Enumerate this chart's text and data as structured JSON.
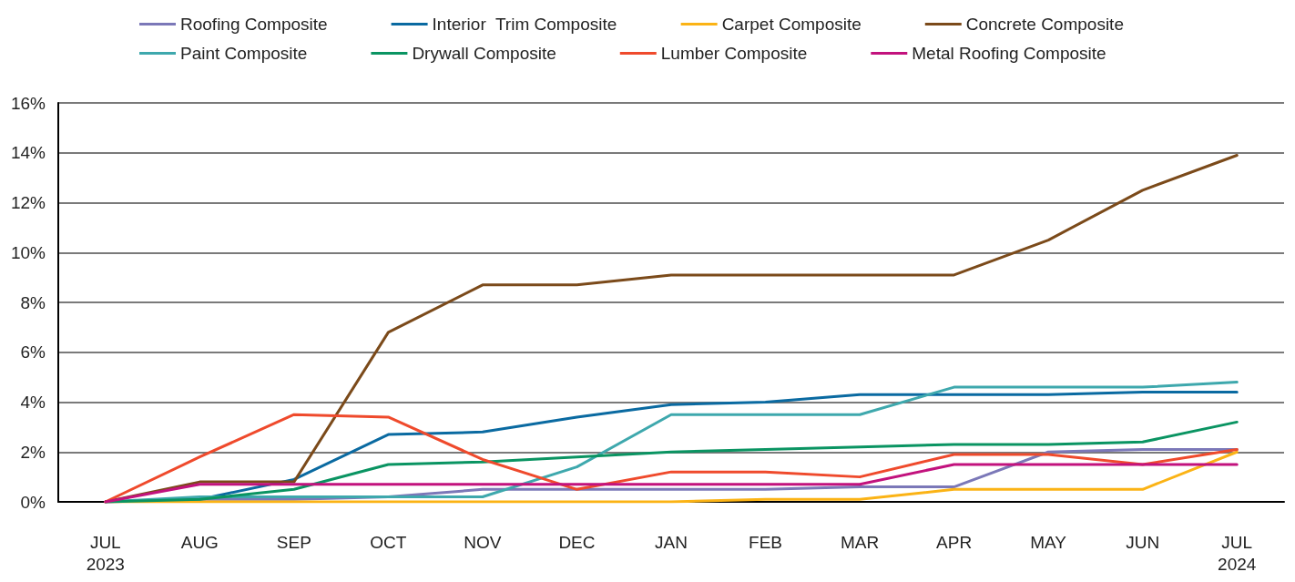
{
  "chart_data": {
    "type": "line",
    "categories": [
      "JUL\n2023",
      "AUG",
      "SEP",
      "OCT",
      "NOV",
      "DEC",
      "JAN",
      "FEB",
      "MAR",
      "APR",
      "MAY",
      "JUN",
      "JUL\n2024"
    ],
    "series": [
      {
        "name": "Roofing Composite",
        "color": "#7b78b8",
        "values": [
          0,
          0.1,
          0.1,
          0.2,
          0.5,
          0.5,
          0.5,
          0.5,
          0.6,
          0.6,
          2.0,
          2.1,
          2.1
        ]
      },
      {
        "name": "Interior  Trim Composite",
        "color": "#0a6aa1",
        "values": [
          0,
          0.1,
          0.9,
          2.7,
          2.8,
          3.4,
          3.9,
          4.0,
          4.3,
          4.3,
          4.3,
          4.4,
          4.4
        ]
      },
      {
        "name": "Carpet Composite",
        "color": "#fbb315",
        "values": [
          0,
          0,
          0,
          0,
          0,
          0,
          0,
          0.1,
          0.1,
          0.5,
          0.5,
          0.5,
          2.0
        ]
      },
      {
        "name": "Concrete Composite",
        "color": "#7b4a1a",
        "values": [
          0,
          0.8,
          0.8,
          6.8,
          8.7,
          8.7,
          9.1,
          9.1,
          9.1,
          9.1,
          10.5,
          12.5,
          13.9
        ]
      },
      {
        "name": "Paint Composite",
        "color": "#3ea8ad",
        "values": [
          0,
          0.2,
          0.2,
          0.2,
          0.2,
          1.4,
          3.5,
          3.5,
          3.5,
          4.6,
          4.6,
          4.6,
          4.8
        ]
      },
      {
        "name": "Drywall Composite",
        "color": "#0a9462",
        "values": [
          0,
          0.1,
          0.5,
          1.5,
          1.6,
          1.8,
          2.0,
          2.1,
          2.2,
          2.3,
          2.3,
          2.4,
          3.2
        ]
      },
      {
        "name": "Lumber Composite",
        "color": "#ef4a2c",
        "values": [
          0,
          1.8,
          3.5,
          3.4,
          1.7,
          0.5,
          1.2,
          1.2,
          1.0,
          1.9,
          1.9,
          1.5,
          2.1
        ]
      },
      {
        "name": "Metal Roofing Composite",
        "color": "#c2127d",
        "values": [
          0,
          0.7,
          0.7,
          0.7,
          0.7,
          0.7,
          0.7,
          0.7,
          0.7,
          1.5,
          1.5,
          1.5,
          1.5
        ]
      }
    ],
    "ylim": [
      0,
      16
    ],
    "yticks": [
      {
        "value": 0,
        "label": "0%"
      },
      {
        "value": 2,
        "label": "2%"
      },
      {
        "value": 4,
        "label": "4%"
      },
      {
        "value": 6,
        "label": "6%"
      },
      {
        "value": 8,
        "label": "8%"
      },
      {
        "value": 10,
        "label": "10%"
      },
      {
        "value": 12,
        "label": "12%"
      },
      {
        "value": 14,
        "label": "14%"
      },
      {
        "value": 16,
        "label": "16%"
      }
    ],
    "grid": "y",
    "legend": "top",
    "marker": "none",
    "line_style": "solid"
  }
}
